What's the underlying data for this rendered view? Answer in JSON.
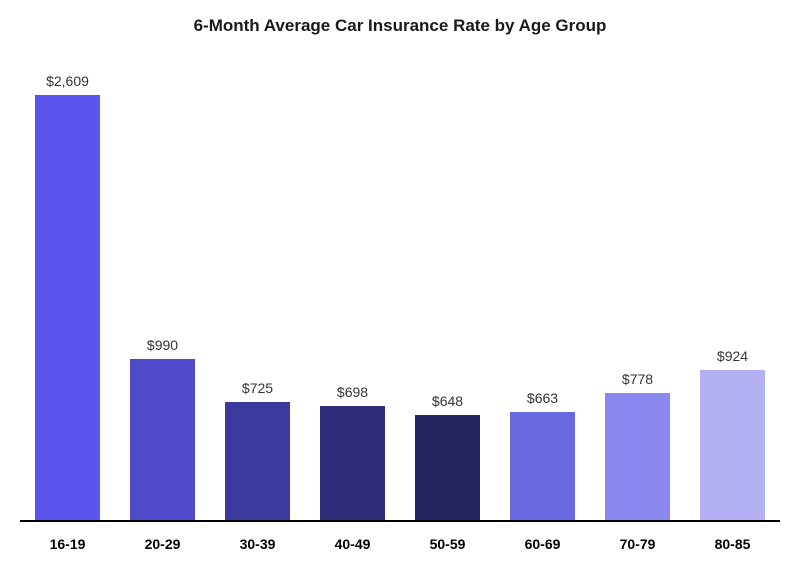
{
  "chart": {
    "type": "bar",
    "title": "6-Month Average Car Insurance Rate by Age Group",
    "title_fontsize": 17,
    "title_fontweight": 700,
    "title_color": "#1a1a1a",
    "background_color": "#ffffff",
    "axis_line_color": "#000000",
    "axis_line_width": 2,
    "value_prefix": "$",
    "value_format": "comma",
    "value_label_fontsize": 14,
    "value_label_color": "#333333",
    "x_label_fontsize": 14,
    "x_label_fontweight": 700,
    "x_label_color": "#000000",
    "y_max": 2850,
    "y_min": 0,
    "bar_width_ratio": 0.68,
    "categories": [
      "16-19",
      "20-29",
      "30-39",
      "40-49",
      "50-59",
      "60-69",
      "70-79",
      "80-85"
    ],
    "values": [
      2609,
      990,
      725,
      698,
      648,
      663,
      778,
      924
    ],
    "bar_colors": [
      "#5a55ef",
      "#4e49c7",
      "#3d3a9e",
      "#2e2c79",
      "#24245f",
      "#6a69e2",
      "#8a87ee",
      "#b3b0f3"
    ],
    "grid": false,
    "font_family": "Helvetica Neue, Helvetica, Arial, sans-serif"
  }
}
